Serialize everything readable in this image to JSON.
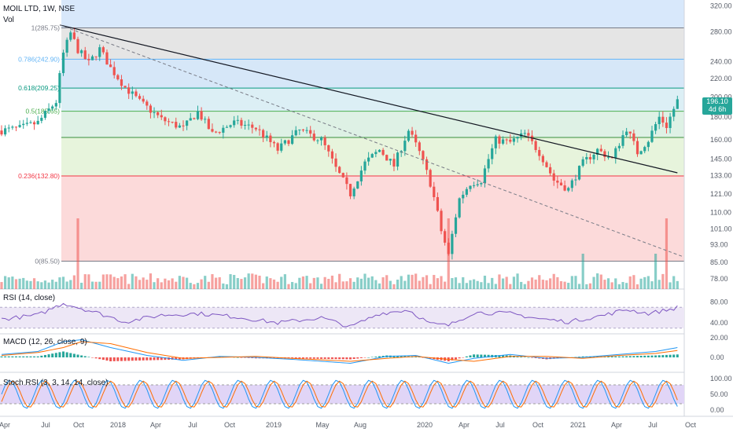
{
  "header": {
    "symbol": "MOIL LTD, 1W, NSE",
    "volume_label": "Vol"
  },
  "price_badge": {
    "price": "196.10",
    "countdown": "4d 6h"
  },
  "panes": {
    "rsi": {
      "title": "RSI (14, close)",
      "ticks": [
        "80.00",
        "40.00"
      ]
    },
    "macd": {
      "title": "MACD (12, 26, close, 9)",
      "ticks": [
        "20.00",
        "0.00"
      ]
    },
    "stoch": {
      "title": "Stoch RSI (3, 3, 14, 14, close)",
      "ticks": [
        "100.00",
        "50.00",
        "0.00"
      ]
    }
  },
  "colors": {
    "up": "#26a69a",
    "down": "#ef5350",
    "rsi": "#7e57c2",
    "macd": "#2196f3",
    "signal": "#ff6d00"
  },
  "chart_data": {
    "type": "candlestick",
    "title": "MOIL LTD, 1W, NSE",
    "price_axis": {
      "log": true,
      "range": [
        74,
        330
      ],
      "ticks": [
        "320.00",
        "280.00",
        "240.00",
        "220.00",
        "200.00",
        "180.00",
        "160.00",
        "145.00",
        "133.00",
        "121.00",
        "110.00",
        "101.00",
        "93.00",
        "85.00",
        "78.00"
      ]
    },
    "time_axis": {
      "labels": [
        "Apr",
        "Jul",
        "Oct",
        "2018",
        "Apr",
        "Jul",
        "Oct",
        "2019",
        "May",
        "Aug",
        "2020",
        "Apr",
        "Jul",
        "Oct",
        "2021",
        "Apr",
        "Jul",
        "Oct"
      ]
    },
    "fibonacci": [
      {
        "level": "1",
        "price": 285.75,
        "label": "1(285.75)"
      },
      {
        "level": "0.786",
        "price": 242.9,
        "label": "0.786(242.90)"
      },
      {
        "level": "0.618",
        "price": 209.25,
        "label": "0.618(209.25)"
      },
      {
        "level": "0.5",
        "price": 185.65,
        "label": "0.5(185.65)"
      },
      {
        "level": "0.382",
        "price": 162.1,
        "label": ""
      },
      {
        "level": "0.236",
        "price": 132.8,
        "label": "0.236(132.80)"
      },
      {
        "level": "0",
        "price": 85.5,
        "label": "0(85.50)"
      }
    ],
    "last_price": 196.1,
    "close_path": [
      {
        "t": 0,
        "p": 168
      },
      {
        "t": 5,
        "p": 170
      },
      {
        "t": 10,
        "p": 175
      },
      {
        "t": 15,
        "p": 195
      },
      {
        "t": 17,
        "p": 250
      },
      {
        "t": 19,
        "p": 278
      },
      {
        "t": 21,
        "p": 255
      },
      {
        "t": 24,
        "p": 238
      },
      {
        "t": 27,
        "p": 256
      },
      {
        "t": 30,
        "p": 232
      },
      {
        "t": 34,
        "p": 210
      },
      {
        "t": 38,
        "p": 195
      },
      {
        "t": 44,
        "p": 178
      },
      {
        "t": 50,
        "p": 170
      },
      {
        "t": 54,
        "p": 185
      },
      {
        "t": 58,
        "p": 165
      },
      {
        "t": 64,
        "p": 175
      },
      {
        "t": 70,
        "p": 170
      },
      {
        "t": 76,
        "p": 152
      },
      {
        "t": 82,
        "p": 168
      },
      {
        "t": 88,
        "p": 160
      },
      {
        "t": 92,
        "p": 138
      },
      {
        "t": 96,
        "p": 121
      },
      {
        "t": 100,
        "p": 142
      },
      {
        "t": 104,
        "p": 152
      },
      {
        "t": 108,
        "p": 140
      },
      {
        "t": 112,
        "p": 168
      },
      {
        "t": 115,
        "p": 150
      },
      {
        "t": 118,
        "p": 128
      },
      {
        "t": 121,
        "p": 100
      },
      {
        "t": 123,
        "p": 88
      },
      {
        "t": 126,
        "p": 118
      },
      {
        "t": 129,
        "p": 128
      },
      {
        "t": 132,
        "p": 130
      },
      {
        "t": 136,
        "p": 160
      },
      {
        "t": 140,
        "p": 158
      },
      {
        "t": 144,
        "p": 165
      },
      {
        "t": 148,
        "p": 150
      },
      {
        "t": 152,
        "p": 130
      },
      {
        "t": 156,
        "p": 124
      },
      {
        "t": 160,
        "p": 142
      },
      {
        "t": 164,
        "p": 152
      },
      {
        "t": 168,
        "p": 145
      },
      {
        "t": 172,
        "p": 170
      },
      {
        "t": 175,
        "p": 150
      },
      {
        "t": 178,
        "p": 160
      },
      {
        "t": 181,
        "p": 180
      },
      {
        "t": 183,
        "p": 172
      },
      {
        "t": 186,
        "p": 196
      }
    ],
    "rsi_path": [
      {
        "t": 0,
        "v": 47
      },
      {
        "t": 10,
        "v": 55
      },
      {
        "t": 17,
        "v": 78
      },
      {
        "t": 20,
        "v": 72
      },
      {
        "t": 26,
        "v": 60
      },
      {
        "t": 34,
        "v": 42
      },
      {
        "t": 44,
        "v": 55
      },
      {
        "t": 54,
        "v": 58
      },
      {
        "t": 64,
        "v": 52
      },
      {
        "t": 76,
        "v": 40
      },
      {
        "t": 88,
        "v": 50
      },
      {
        "t": 96,
        "v": 32
      },
      {
        "t": 104,
        "v": 58
      },
      {
        "t": 112,
        "v": 65
      },
      {
        "t": 118,
        "v": 38
      },
      {
        "t": 123,
        "v": 35
      },
      {
        "t": 130,
        "v": 60
      },
      {
        "t": 140,
        "v": 58
      },
      {
        "t": 148,
        "v": 48
      },
      {
        "t": 156,
        "v": 42
      },
      {
        "t": 166,
        "v": 55
      },
      {
        "t": 172,
        "v": 66
      },
      {
        "t": 178,
        "v": 58
      },
      {
        "t": 184,
        "v": 66
      },
      {
        "t": 186,
        "v": 70
      }
    ],
    "macd_path": [
      {
        "t": 0,
        "m": 3,
        "s": 2
      },
      {
        "t": 10,
        "m": 6,
        "s": 5
      },
      {
        "t": 17,
        "m": 16,
        "s": 10
      },
      {
        "t": 22,
        "m": 18,
        "s": 16
      },
      {
        "t": 30,
        "m": 10,
        "s": 14
      },
      {
        "t": 40,
        "m": 2,
        "s": 5
      },
      {
        "t": 50,
        "m": -3,
        "s": -1
      },
      {
        "t": 60,
        "m": 1,
        "s": 0
      },
      {
        "t": 70,
        "m": 0,
        "s": 1
      },
      {
        "t": 80,
        "m": -2,
        "s": -1
      },
      {
        "t": 96,
        "m": -6,
        "s": -4
      },
      {
        "t": 106,
        "m": 1,
        "s": -1
      },
      {
        "t": 114,
        "m": 2,
        "s": 1
      },
      {
        "t": 123,
        "m": -6,
        "s": -2
      },
      {
        "t": 130,
        "m": -1,
        "s": -4
      },
      {
        "t": 140,
        "m": 3,
        "s": 1
      },
      {
        "t": 150,
        "m": -1,
        "s": 1
      },
      {
        "t": 160,
        "m": 0,
        "s": -1
      },
      {
        "t": 170,
        "m": 3,
        "s": 2
      },
      {
        "t": 180,
        "m": 6,
        "s": 4
      },
      {
        "t": 186,
        "m": 10,
        "s": 7
      }
    ],
    "stoch_cycle_weeks": 9
  }
}
